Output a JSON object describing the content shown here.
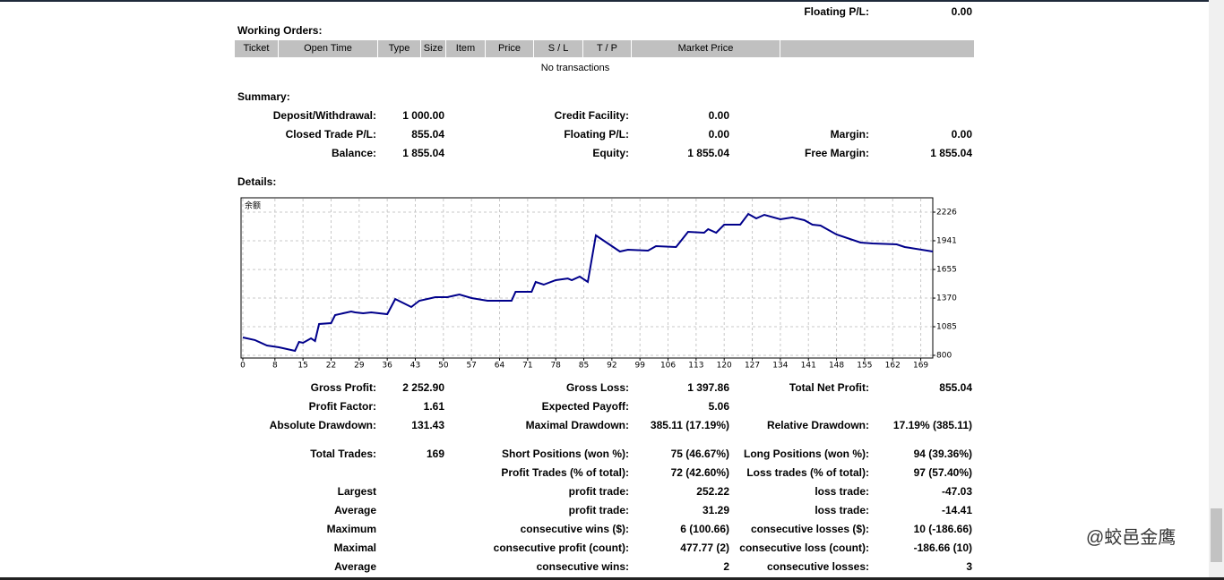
{
  "header": {
    "row": {
      "right": [
        "Floating P/L:",
        "0.00"
      ]
    }
  },
  "working_orders": {
    "title": "Working Orders:",
    "columns": [
      "Ticket",
      "Open Time",
      "Type",
      "Size",
      "Item",
      "Price",
      "S / L",
      "T / P",
      "Market Price"
    ],
    "empty_text": "No transactions"
  },
  "summary": {
    "title": "Summary:",
    "rows": [
      {
        "left": [
          "Deposit/Withdrawal:",
          "1 000.00"
        ],
        "middle": [
          "Credit Facility:",
          "0.00"
        ]
      },
      {
        "left": [
          "Closed Trade P/L:",
          "855.04"
        ],
        "middle": [
          "Floating P/L:",
          "0.00"
        ],
        "right": [
          "Margin:",
          "0.00"
        ]
      },
      {
        "left": [
          "Balance:",
          "1 855.04"
        ],
        "middle": [
          "Equity:",
          "1 855.04"
        ],
        "right": [
          "Free Margin:",
          "1 855.04"
        ]
      }
    ]
  },
  "details": {
    "title": "Details:",
    "chart_data": {
      "type": "line",
      "label": "余额",
      "color": "#00008b",
      "grid": true,
      "xlim": [
        0,
        172
      ],
      "ylim": [
        800,
        2340
      ],
      "xticks": [
        0,
        8,
        15,
        22,
        29,
        36,
        43,
        50,
        57,
        64,
        71,
        78,
        85,
        92,
        99,
        106,
        113,
        120,
        127,
        134,
        141,
        148,
        155,
        162,
        169
      ],
      "yticks": [
        800,
        1085,
        1370,
        1655,
        1941,
        2226
      ],
      "series": [
        {
          "name": "余额",
          "x": [
            0,
            3,
            6,
            9,
            13,
            14,
            15,
            17,
            18,
            19,
            22,
            23,
            27,
            28,
            30,
            32,
            36,
            38,
            42,
            44,
            48,
            51,
            54,
            57,
            61,
            67,
            68,
            72,
            73,
            75,
            78,
            81,
            82,
            84,
            86,
            88,
            94,
            96,
            101,
            103,
            108,
            111,
            115,
            116,
            118,
            120,
            124,
            126,
            128,
            130,
            134,
            137,
            140,
            142,
            144,
            148,
            154,
            157,
            163,
            165,
            172
          ],
          "values": [
            978,
            952,
            898,
            880,
            845,
            934,
            925,
            969,
            943,
            1112,
            1121,
            1201,
            1237,
            1228,
            1219,
            1228,
            1210,
            1361,
            1281,
            1344,
            1379,
            1379,
            1406,
            1370,
            1344,
            1344,
            1433,
            1433,
            1531,
            1504,
            1549,
            1566,
            1549,
            1584,
            1531,
            1994,
            1834,
            1852,
            1843,
            1887,
            1878,
            2030,
            2021,
            2057,
            2021,
            2101,
            2101,
            2208,
            2164,
            2199,
            2155,
            2173,
            2146,
            2101,
            2092,
            2003,
            1923,
            1914,
            1905,
            1878,
            1834
          ]
        }
      ]
    }
  },
  "stats": [
    [
      {
        "left": [
          "Gross Profit:",
          "2 252.90"
        ],
        "middle": [
          "Gross Loss:",
          "1 397.86"
        ],
        "right": [
          "Total Net Profit:",
          "855.04"
        ]
      },
      {
        "left": [
          "Profit Factor:",
          "1.61"
        ],
        "middle": [
          "Expected Payoff:",
          "5.06"
        ]
      },
      {
        "left": [
          "Absolute Drawdown:",
          "131.43"
        ],
        "middle": [
          "Maximal Drawdown:",
          "385.11 (17.19%)"
        ],
        "right": [
          "Relative Drawdown:",
          "17.19% (385.11)"
        ]
      }
    ],
    [
      {
        "left": [
          "Total Trades:",
          "169"
        ],
        "middle": [
          "Short Positions (won %):",
          "75 (46.67%)"
        ],
        "right": [
          "Long Positions (won %):",
          "94 (39.36%)"
        ]
      },
      {
        "middle": [
          "Profit Trades (% of total):",
          "72 (42.60%)"
        ],
        "right": [
          "Loss trades (% of total):",
          "97 (57.40%)"
        ]
      },
      {
        "left": [
          "Largest"
        ],
        "middle": [
          "profit trade:",
          "252.22"
        ],
        "right": [
          "loss trade:",
          "-47.03"
        ]
      },
      {
        "left": [
          "Average"
        ],
        "middle": [
          "profit trade:",
          "31.29"
        ],
        "right": [
          "loss trade:",
          "-14.41"
        ]
      },
      {
        "left": [
          "Maximum"
        ],
        "middle": [
          "consecutive wins ($):",
          "6 (100.66)"
        ],
        "right": [
          "consecutive losses ($):",
          "10 (-186.66)"
        ]
      },
      {
        "left": [
          "Maximal"
        ],
        "middle": [
          "consecutive profit (count):",
          "477.77 (2)"
        ],
        "right": [
          "consecutive loss (count):",
          "-186.66 (10)"
        ]
      },
      {
        "left": [
          "Average"
        ],
        "middle": [
          "consecutive wins:",
          "2"
        ],
        "right": [
          "consecutive losses:",
          "3"
        ]
      }
    ]
  ],
  "watermark": "@蛟邑金鹰"
}
